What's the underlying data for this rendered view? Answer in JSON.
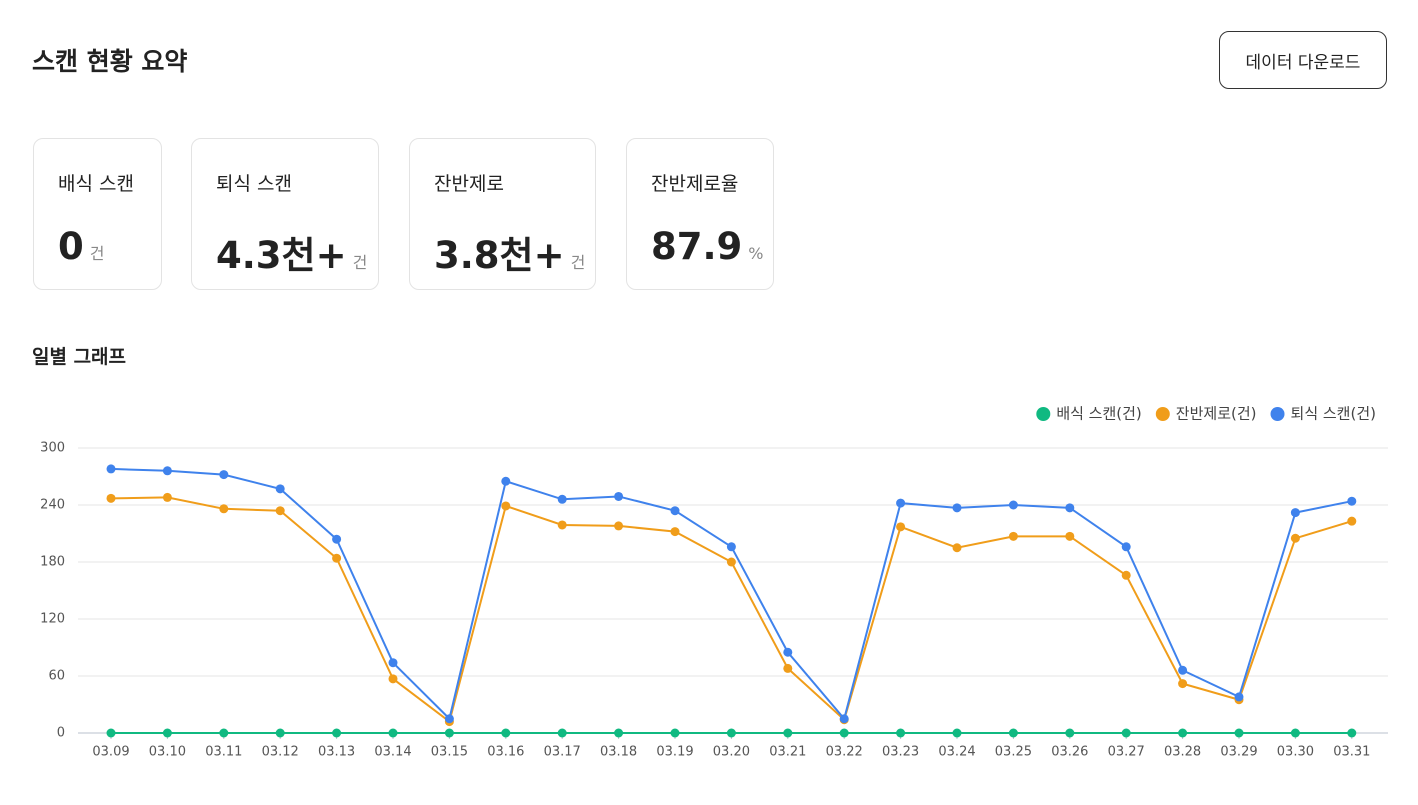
{
  "header": {
    "title": "스캔 현황 요약",
    "button": "데이터 다운로드"
  },
  "cards": [
    {
      "label": "배식 스캔",
      "value": 0,
      "unit": "건"
    },
    {
      "label": "퇴식 스캔",
      "value": "4.3천+",
      "unit": "건"
    },
    {
      "label": "잔반제로",
      "value": "3.8천+",
      "unit": "건"
    },
    {
      "label": "잔반제로율",
      "value": 87.9,
      "unit": "%"
    }
  ],
  "chart_data": {
    "type": "line",
    "title": "일별 그래프",
    "categories": [
      "03.09",
      "03.10",
      "03.11",
      "03.12",
      "03.13",
      "03.14",
      "03.15",
      "03.16",
      "03.17",
      "03.18",
      "03.19",
      "03.20",
      "03.21",
      "03.22",
      "03.23",
      "03.24",
      "03.25",
      "03.26",
      "03.27",
      "03.28",
      "03.29",
      "03.30",
      "03.31"
    ],
    "series": [
      {
        "name": "배식 스캔(건)",
        "color": "#10b981",
        "values": [
          0,
          0,
          0,
          0,
          0,
          0,
          0,
          0,
          0,
          0,
          0,
          0,
          0,
          0,
          0,
          0,
          0,
          0,
          0,
          0,
          0,
          0,
          0
        ]
      },
      {
        "name": "잔반제로(건)",
        "color": "#f09d1a",
        "values": [
          247,
          248,
          236,
          234,
          184,
          57,
          12,
          239,
          219,
          218,
          212,
          180,
          68,
          14,
          217,
          195,
          207,
          207,
          166,
          52,
          35,
          205,
          223
        ]
      },
      {
        "name": "퇴식 스캔(건)",
        "color": "#3f82ec",
        "values": [
          278,
          276,
          272,
          257,
          204,
          74,
          15,
          265,
          246,
          249,
          234,
          196,
          85,
          15,
          242,
          237,
          240,
          237,
          196,
          66,
          38,
          232,
          244
        ]
      }
    ],
    "ylim": [
      0,
      300
    ],
    "yticks": [
      0,
      60,
      120,
      180,
      240,
      300
    ],
    "grid": true,
    "legend": "top-right"
  }
}
